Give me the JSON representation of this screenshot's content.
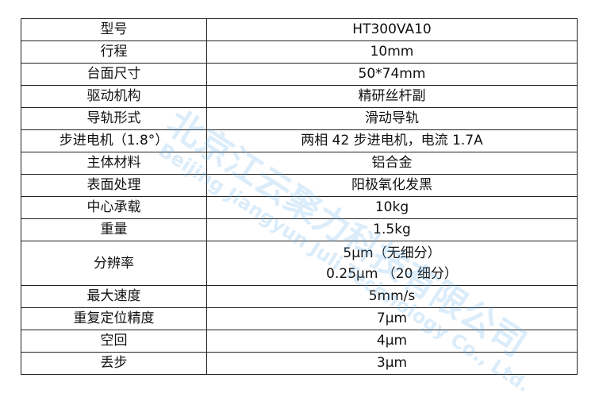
{
  "rows": [
    {
      "label": "型号",
      "value": "HT300VA10"
    },
    {
      "label": "行程",
      "value": "10mm"
    },
    {
      "label": "台面尺寸",
      "value": "50*74mm"
    },
    {
      "label": "驱动机构",
      "value": "精研丝杆副"
    },
    {
      "label": "导轨形式",
      "value": "滑动导轨"
    },
    {
      "label": "步进电机（1.8°）",
      "value": "两相 42 步进电机，电流 1.7A"
    },
    {
      "label": "主体材料",
      "value": "铝合金"
    },
    {
      "label": "表面处理",
      "value": "阳极氧化发黑"
    },
    {
      "label": "中心承载",
      "value": "10kg"
    },
    {
      "label": "重量",
      "value": "1.5kg"
    },
    {
      "label": "分辨率",
      "value": "5μm（无细分）",
      "value2": "0.25μm （20 细分）"
    },
    {
      "label": "最大速度",
      "value": "5mm/s"
    },
    {
      "label": "重复定位精度",
      "value": "7μm"
    },
    {
      "label": "空回",
      "value": "4μm"
    },
    {
      "label": "丢步",
      "value": "3μm"
    }
  ],
  "watermark": {
    "cn": "北京江云聚力科技有限公司",
    "en": "Beijing Jiangyun Juli Technology Co., Ltd.",
    "color": "#5aaae6"
  }
}
